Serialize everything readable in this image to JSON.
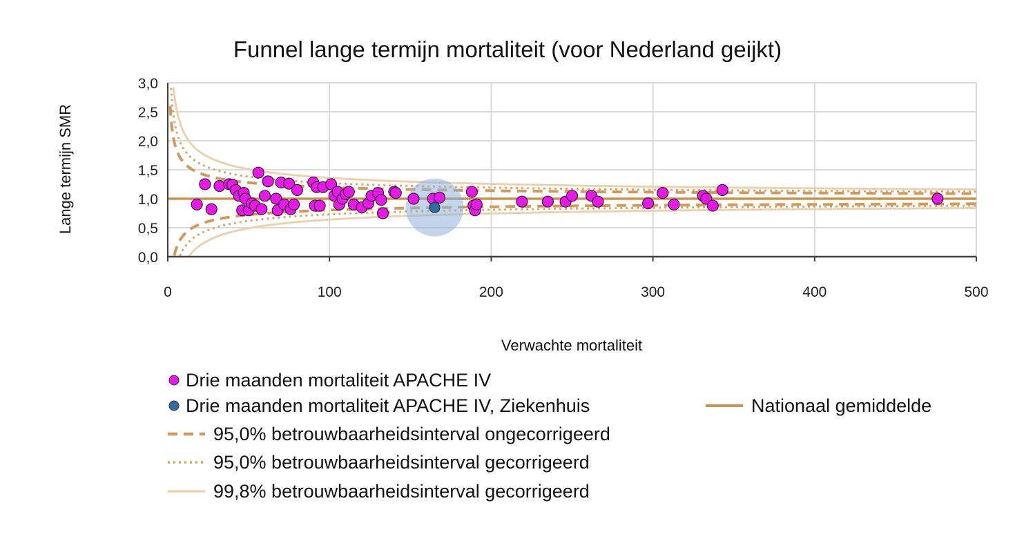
{
  "chart_data": {
    "type": "scatter",
    "title": "Funnel lange termijn mortaliteit (voor Nederland geijkt)",
    "xlabel": "Verwachte mortaliteit",
    "ylabel": "Lange termijn SMR",
    "xlim": [
      0,
      500
    ],
    "ylim": [
      0.0,
      3.0
    ],
    "x_ticks": [
      "0",
      "100",
      "200",
      "300",
      "400",
      "500"
    ],
    "y_ticks": [
      "0,0",
      "0,5",
      "1,0",
      "1,5",
      "2,0",
      "2,5",
      "3,0"
    ],
    "grid": true,
    "legend_position": "bottom",
    "colors": {
      "hospitals": "#e619e6",
      "own_hospital": "#2f6da3",
      "highlight": "#8fb3d9",
      "national": "#c8934f",
      "ci95_uncorrected": "#cf9a5c",
      "ci95_corrected": "#d9a66a",
      "ci998_corrected": "#ead2b0",
      "grid": "#d9d9d9",
      "axis": "#404040"
    },
    "series": [
      {
        "name": "Drie maanden mortaliteit APACHE IV",
        "marker": "circle",
        "points": [
          [
            18,
            0.9
          ],
          [
            23,
            1.25
          ],
          [
            27,
            0.82
          ],
          [
            32,
            1.22
          ],
          [
            38,
            1.25
          ],
          [
            40,
            1.24
          ],
          [
            42,
            1.15
          ],
          [
            44,
            1.05
          ],
          [
            46,
            0.8
          ],
          [
            47,
            1.1
          ],
          [
            48,
            1.0
          ],
          [
            50,
            0.8
          ],
          [
            52,
            0.92
          ],
          [
            54,
            0.88
          ],
          [
            56,
            1.45
          ],
          [
            58,
            0.82
          ],
          [
            60,
            1.05
          ],
          [
            62,
            1.3
          ],
          [
            67,
            1.0
          ],
          [
            68,
            0.8
          ],
          [
            70,
            1.28
          ],
          [
            72,
            0.9
          ],
          [
            75,
            1.26
          ],
          [
            76,
            0.82
          ],
          [
            78,
            0.9
          ],
          [
            80,
            1.15
          ],
          [
            90,
            1.28
          ],
          [
            91,
            0.88
          ],
          [
            92,
            1.2
          ],
          [
            94,
            0.88
          ],
          [
            96,
            1.2
          ],
          [
            101,
            1.25
          ],
          [
            103,
            1.05
          ],
          [
            105,
            1.12
          ],
          [
            106,
            0.9
          ],
          [
            108,
            1.0
          ],
          [
            110,
            1.08
          ],
          [
            112,
            1.12
          ],
          [
            115,
            0.9
          ],
          [
            120,
            0.85
          ],
          [
            124,
            0.92
          ],
          [
            126,
            1.05
          ],
          [
            130,
            1.1
          ],
          [
            132,
            0.98
          ],
          [
            133,
            0.75
          ],
          [
            140,
            1.12
          ],
          [
            141,
            1.1
          ],
          [
            152,
            1.0
          ],
          [
            164,
            1.0
          ],
          [
            168,
            1.02
          ],
          [
            188,
            1.12
          ],
          [
            189,
            0.88
          ],
          [
            190,
            0.8
          ],
          [
            191,
            0.9
          ],
          [
            219,
            0.95
          ],
          [
            235,
            0.95
          ],
          [
            246,
            0.95
          ],
          [
            250,
            1.05
          ],
          [
            262,
            1.05
          ],
          [
            266,
            0.95
          ],
          [
            297,
            0.92
          ],
          [
            306,
            1.1
          ],
          [
            313,
            0.9
          ],
          [
            331,
            1.05
          ],
          [
            333,
            1.0
          ],
          [
            337,
            0.88
          ],
          [
            343,
            1.15
          ],
          [
            476,
            1.0
          ]
        ]
      },
      {
        "name": "Drie maanden mortaliteit APACHE IV, Ziekenhuis",
        "marker": "circle",
        "points": [
          [
            165,
            0.85
          ]
        ],
        "highlight_radius_data": 0.5
      },
      {
        "name": "Nationaal gemiddelde",
        "line_style": "solid",
        "value": 1.0
      },
      {
        "name": "95,0% betrouwbaarheidsinterval ongecorrigeerd",
        "line_style": "dashed",
        "z": 1.96
      },
      {
        "name": "95,0% betrouwbaarheidsinterval gecorrigeerd",
        "line_style": "dotted",
        "z": 2.7
      },
      {
        "name": "99,8% betrouwbaarheidsinterval gecorrigeerd",
        "line_style": "solid-light",
        "z": 3.6
      }
    ]
  }
}
